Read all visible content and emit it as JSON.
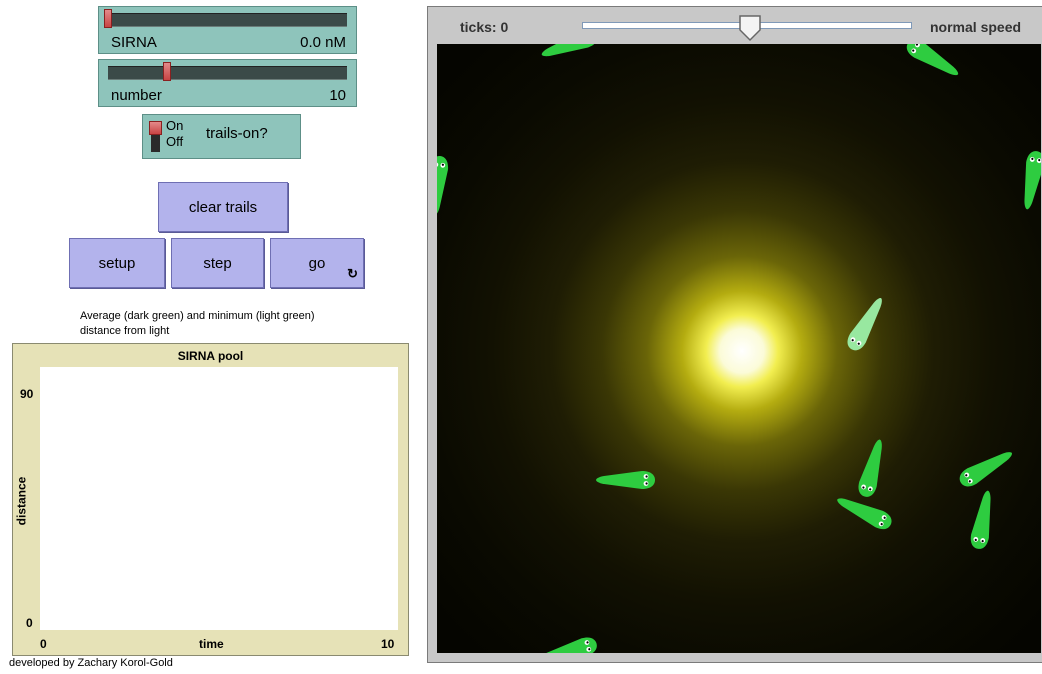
{
  "controls": {
    "sirna_slider": {
      "label": "SIRNA",
      "value": "0.0 nM",
      "fraction": 0.0
    },
    "number_slider": {
      "label": "number",
      "value": "10",
      "fraction": 0.24
    },
    "trails_switch": {
      "on_label": "On",
      "off_label": "Off",
      "name": "trails-on?"
    },
    "buttons": {
      "clear_trails": "clear trails",
      "setup": "setup",
      "step": "step",
      "go": "go"
    }
  },
  "plot": {
    "caption": "Average (dark green) and minimum (light green) distance from light",
    "title": "SIRNA pool",
    "y_label": "distance",
    "x_label": "time",
    "y_max": "90",
    "y_min": "0",
    "x_min": "0",
    "x_max": "10"
  },
  "credit": "developed by Zachary Korol-Gold",
  "view": {
    "ticks": "ticks: 0",
    "speed_label": "normal speed",
    "speed_fraction": 0.5
  },
  "colors": {
    "turtle_green": "#2ecc40",
    "turtle_light": "#98e8a0",
    "slider_bg": "#8ec4bb",
    "button_bg": "#b3b3ec",
    "plot_bg": "#e6e2b7"
  }
}
